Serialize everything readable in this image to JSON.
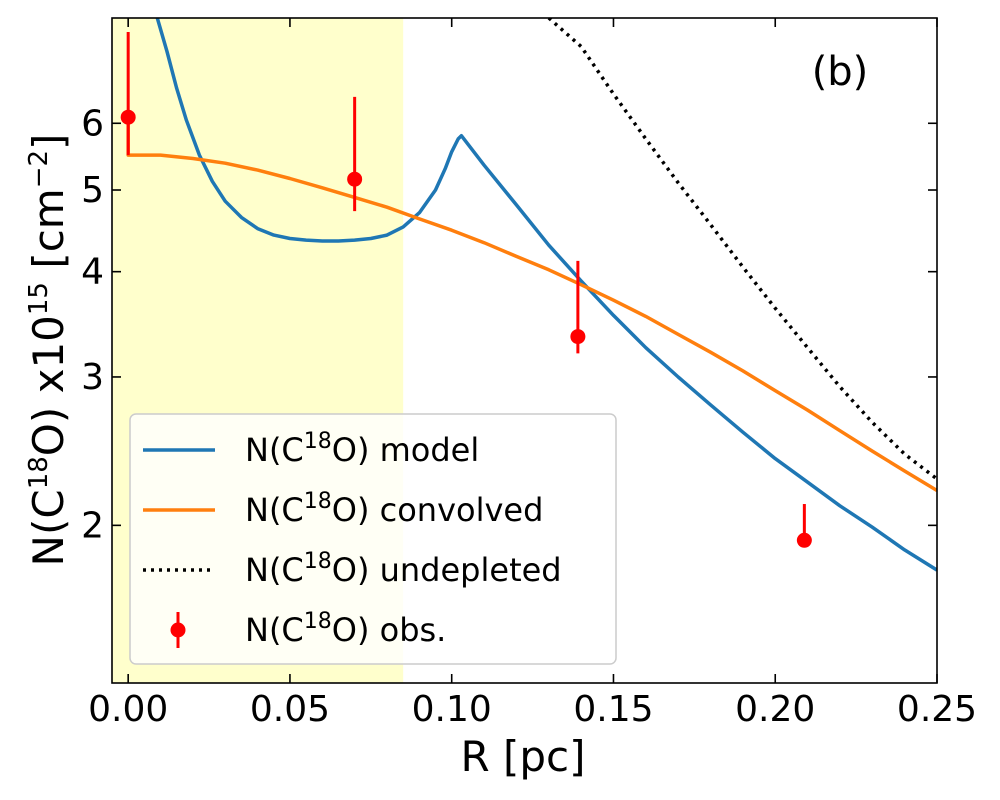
{
  "chart_data": {
    "type": "line",
    "panel_label": "(b)",
    "xlabel": "R [pc]",
    "ylabel_parts": {
      "a": "N(C",
      "iso": "18",
      "b": "O) x10",
      "exp": "15",
      "c": " [cm",
      "unit_exp": "−2",
      "d": "]"
    },
    "xlim": [
      -0.005,
      0.25
    ],
    "ylim": [
      1.3,
      8.0
    ],
    "y_scale": "log",
    "x_ticks": [
      {
        "value": 0.0,
        "label": "0.00"
      },
      {
        "value": 0.05,
        "label": "0.05"
      },
      {
        "value": 0.1,
        "label": "0.10"
      },
      {
        "value": 0.15,
        "label": "0.15"
      },
      {
        "value": 0.2,
        "label": "0.20"
      },
      {
        "value": 0.25,
        "label": "0.25"
      }
    ],
    "y_ticks": [
      {
        "value": 2,
        "label": "2"
      },
      {
        "value": 3,
        "label": "3"
      },
      {
        "value": 4,
        "label": "4"
      },
      {
        "value": 5,
        "label": "5"
      },
      {
        "value": 6,
        "label": "6"
      }
    ],
    "shaded_region": {
      "x_from": -0.005,
      "x_to": 0.085,
      "color": "#ffffcc"
    },
    "series": [
      {
        "name": "model",
        "legend_prefix": "N(C",
        "legend_iso": "18",
        "legend_suffix": "O) model",
        "color": "#1f77b4",
        "style": "solid",
        "x": [
          0.009,
          0.012,
          0.015,
          0.018,
          0.022,
          0.026,
          0.03,
          0.035,
          0.04,
          0.045,
          0.05,
          0.055,
          0.06,
          0.065,
          0.07,
          0.075,
          0.08,
          0.085,
          0.09,
          0.095,
          0.098,
          0.1,
          0.102,
          0.103,
          0.11,
          0.12,
          0.13,
          0.14,
          0.15,
          0.16,
          0.17,
          0.18,
          0.19,
          0.2,
          0.21,
          0.22,
          0.23,
          0.24,
          0.25
        ],
        "y": [
          8.0,
          7.3,
          6.6,
          6.05,
          5.5,
          5.12,
          4.85,
          4.64,
          4.5,
          4.42,
          4.38,
          4.36,
          4.35,
          4.35,
          4.36,
          4.38,
          4.42,
          4.52,
          4.7,
          5.0,
          5.3,
          5.55,
          5.75,
          5.8,
          5.35,
          4.8,
          4.3,
          3.9,
          3.55,
          3.25,
          3.0,
          2.78,
          2.58,
          2.4,
          2.25,
          2.11,
          1.99,
          1.87,
          1.77
        ]
      },
      {
        "name": "convolved",
        "legend_prefix": "N(C",
        "legend_iso": "18",
        "legend_suffix": "O) convolved",
        "color": "#ff7f0e",
        "style": "solid",
        "x": [
          0.0,
          0.0,
          0.01,
          0.02,
          0.03,
          0.04,
          0.05,
          0.06,
          0.07,
          0.08,
          0.09,
          0.1,
          0.11,
          0.12,
          0.13,
          0.14,
          0.15,
          0.16,
          0.17,
          0.18,
          0.19,
          0.2,
          0.21,
          0.22,
          0.23,
          0.24,
          0.25
        ],
        "y": [
          6.1,
          5.5,
          5.5,
          5.45,
          5.38,
          5.28,
          5.16,
          5.03,
          4.9,
          4.77,
          4.62,
          4.48,
          4.33,
          4.17,
          4.02,
          3.86,
          3.7,
          3.54,
          3.37,
          3.21,
          3.05,
          2.89,
          2.74,
          2.59,
          2.45,
          2.32,
          2.2
        ]
      },
      {
        "name": "undepleted",
        "legend_prefix": "N(C",
        "legend_iso": "18",
        "legend_suffix": "O) undepleted",
        "color": "#000000",
        "style": "dotted",
        "x": [
          0.13,
          0.14,
          0.15,
          0.16,
          0.17,
          0.18,
          0.19,
          0.2,
          0.21,
          0.22,
          0.23,
          0.24,
          0.25
        ],
        "y": [
          8.0,
          7.4,
          6.5,
          5.75,
          5.1,
          4.55,
          4.05,
          3.62,
          3.25,
          2.92,
          2.65,
          2.43,
          2.27
        ]
      }
    ],
    "observations": {
      "name": "obs.",
      "legend_prefix": "N(C",
      "legend_iso": "18",
      "legend_suffix": "O) obs.",
      "color": "#ff0000",
      "points": [
        {
          "x": 0.0,
          "y": 6.1,
          "y_low": 5.5,
          "y_high": 7.7
        },
        {
          "x": 0.07,
          "y": 5.15,
          "y_low": 4.72,
          "y_high": 6.45
        },
        {
          "x": 0.139,
          "y": 3.35,
          "y_low": 3.2,
          "y_high": 4.12
        },
        {
          "x": 0.209,
          "y": 1.92,
          "y_low": 1.92,
          "y_high": 2.12
        }
      ]
    },
    "legend_position": "lower-left"
  }
}
